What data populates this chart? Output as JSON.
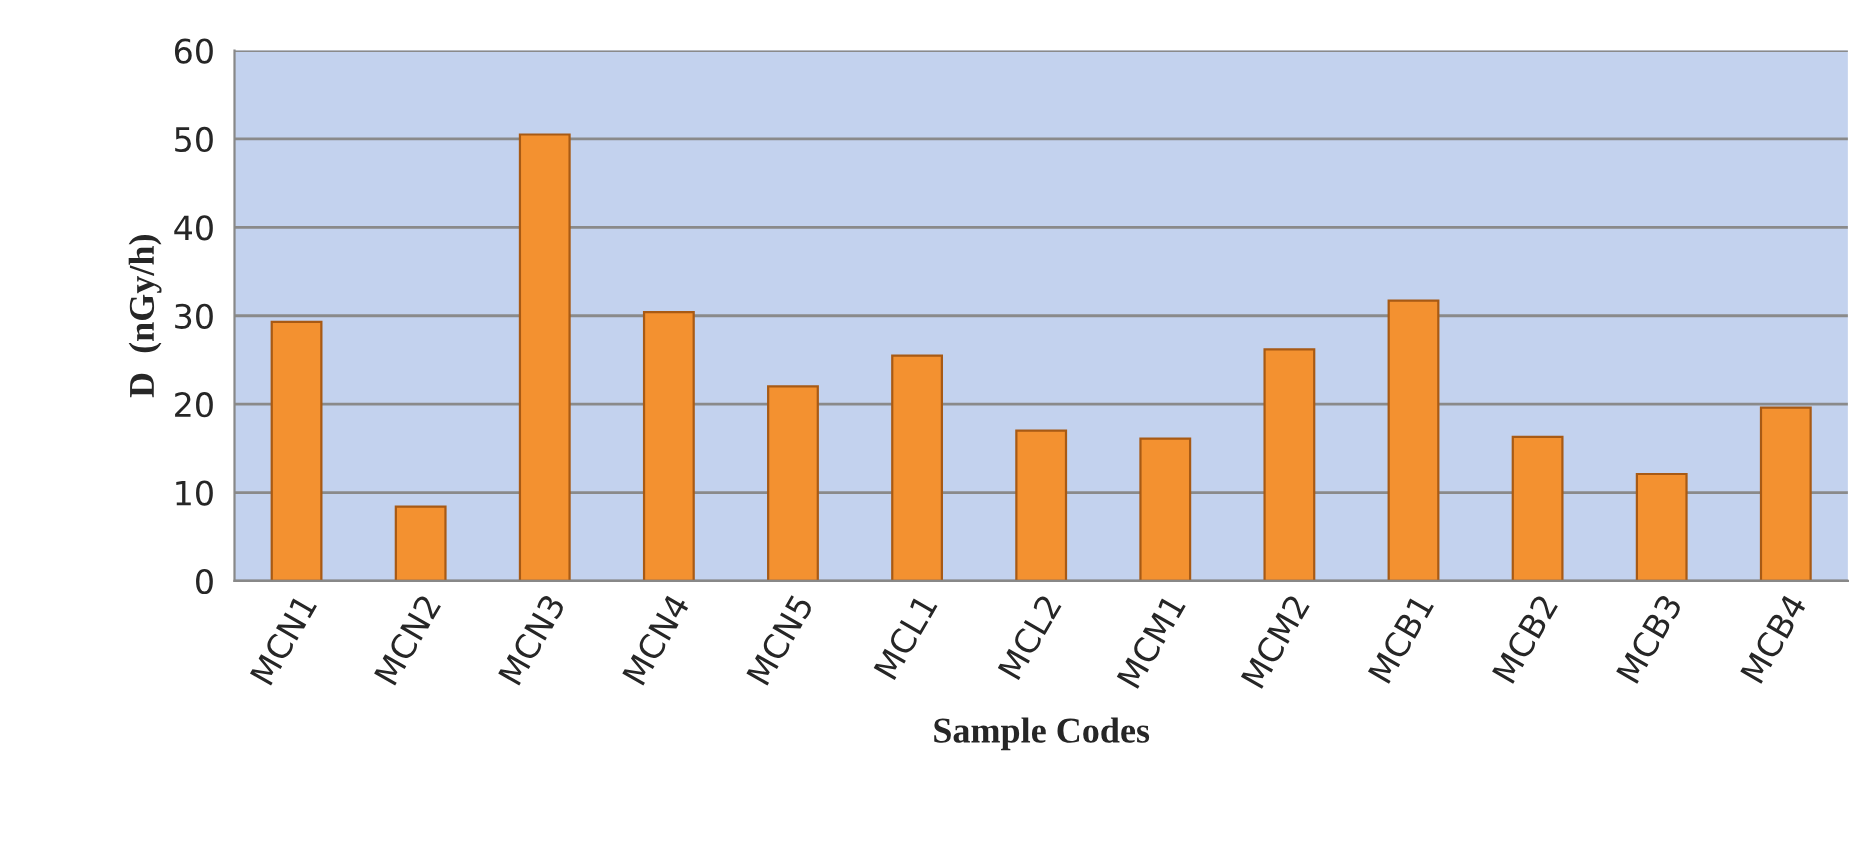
{
  "chart_data": {
    "type": "bar",
    "xlabel": "Sample Codes",
    "ylabel": "D  (nGy/h)",
    "categories": [
      "MCN1",
      "MCN2",
      "MCN3",
      "MCN4",
      "MCN5",
      "MCL1",
      "MCL2",
      "MCM1",
      "MCM2",
      "MCB1",
      "MCB2",
      "MCB3",
      "MCB4"
    ],
    "values": [
      29.3,
      8.4,
      50.5,
      30.4,
      22.0,
      25.5,
      17.0,
      16.1,
      26.2,
      31.7,
      16.3,
      12.1,
      19.6
    ],
    "color": "#f39130",
    "ylim": [
      0,
      60
    ],
    "yticks": [
      0,
      10,
      20,
      30,
      40,
      50,
      60
    ],
    "grid": "y"
  }
}
